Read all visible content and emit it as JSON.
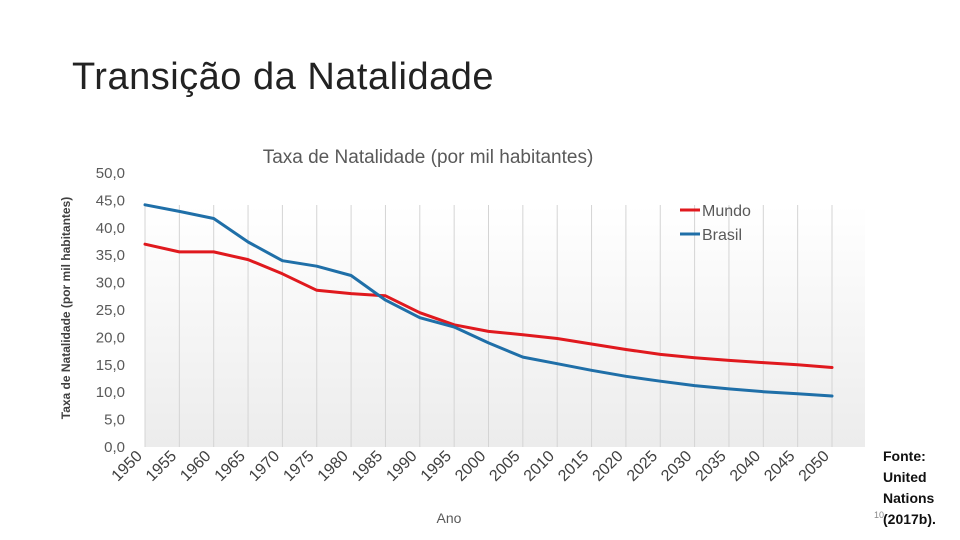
{
  "slide": {
    "title": "Transição da Natalidade",
    "source": "Fonte: United Nations (2017b).",
    "page_number": "10"
  },
  "chart_data": {
    "type": "line",
    "title": "Taxa de Natalidade (por mil habitantes)",
    "xlabel": "Ano",
    "ylabel": "Taxa de Natalidade (por mil habitantes)",
    "ylim": [
      0,
      50
    ],
    "ytick_labels": [
      "0,0",
      "5,0",
      "10,0",
      "15,0",
      "20,0",
      "25,0",
      "30,0",
      "35,0",
      "40,0",
      "45,0",
      "50,0"
    ],
    "categories": [
      "1950",
      "1955",
      "1960",
      "1965",
      "1970",
      "1975",
      "1980",
      "1985",
      "1990",
      "1995",
      "2000",
      "2005",
      "2010",
      "2015",
      "2020",
      "2025",
      "2030",
      "2035",
      "2040",
      "2045",
      "2050"
    ],
    "legend_position": "top-right",
    "series": [
      {
        "name": "Mundo",
        "color": "#e0191e",
        "values": [
          37.0,
          35.6,
          35.6,
          34.2,
          31.6,
          28.6,
          28.0,
          27.6,
          24.5,
          22.3,
          21.1,
          20.5,
          19.8,
          18.8,
          17.8,
          16.9,
          16.3,
          15.8,
          15.4,
          15.0,
          14.5
        ]
      },
      {
        "name": "Brasil",
        "color": "#1f6fa8",
        "values": [
          44.2,
          43.0,
          41.7,
          37.4,
          34.0,
          33.0,
          31.3,
          26.8,
          23.6,
          21.9,
          19.0,
          16.4,
          15.2,
          14.0,
          12.9,
          12.0,
          11.2,
          10.6,
          10.1,
          9.7,
          9.3
        ]
      }
    ]
  }
}
